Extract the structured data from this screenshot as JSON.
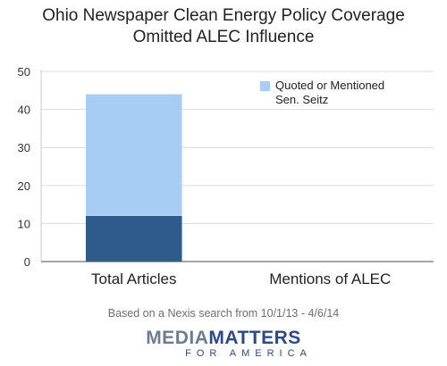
{
  "chart_data": {
    "type": "bar",
    "stacked": true,
    "title_line1": "Ohio Newspaper Clean Energy Policy Coverage",
    "title_line2": "Omitted ALEC Influence",
    "categories": [
      "Total Articles",
      "Mentions of ALEC"
    ],
    "series": [
      {
        "name": "",
        "values": [
          12,
          0
        ],
        "color": "#2f5a8c"
      },
      {
        "name": "Quoted or Mentioned Sen. Seitz",
        "values": [
          32,
          0
        ],
        "color": "#a8cdf5"
      }
    ],
    "legend_lines": [
      "Quoted or Mentioned",
      "Sen. Seitz"
    ],
    "legend_position": "top-right",
    "yticks": [
      0,
      10,
      20,
      30,
      40,
      50
    ],
    "ylim": [
      0,
      50
    ],
    "grid": true
  },
  "footnote": "Based on a Nexis search from 10/1/13 - 4/6/14",
  "logo": {
    "media": "MEDIA",
    "matters": "MATTERS",
    "sub": "FOR AMERICA"
  }
}
